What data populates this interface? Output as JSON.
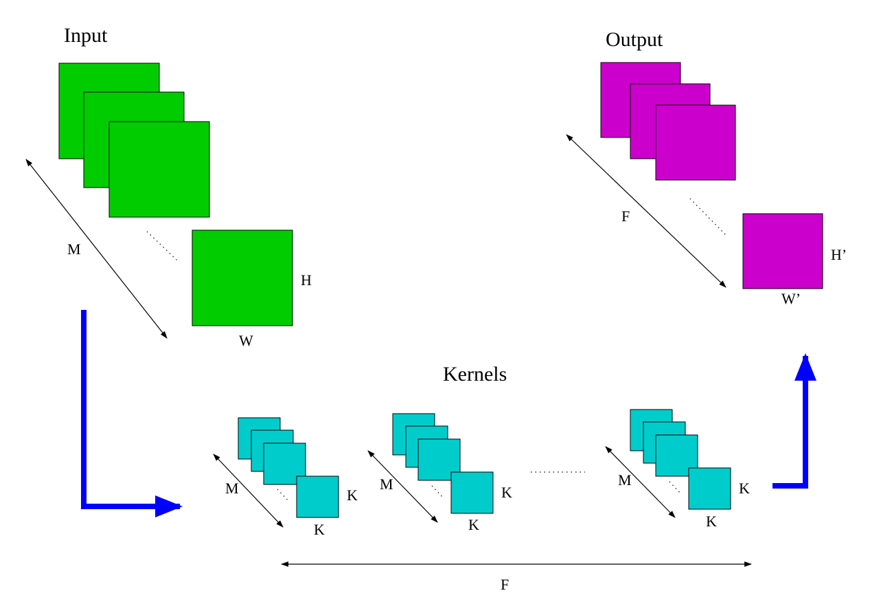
{
  "colors": {
    "input": "#00cc00",
    "output": "#cc00cc",
    "kernel": "#00cccc",
    "flow_arrow": "#0000ff"
  },
  "input": {
    "title": "Input",
    "depth_label": "M",
    "height_label": "H",
    "width_label": "W"
  },
  "output": {
    "title": "Output",
    "depth_label": "F",
    "height_label": "H’",
    "width_label": "W’"
  },
  "kernels": {
    "title": "Kernels",
    "count_label": "F",
    "groups": [
      {
        "depth_label": "M",
        "height_label": "K",
        "width_label": "K"
      },
      {
        "depth_label": "M",
        "height_label": "K",
        "width_label": "K"
      },
      {
        "depth_label": "M",
        "height_label": "K",
        "width_label": "K"
      }
    ]
  }
}
